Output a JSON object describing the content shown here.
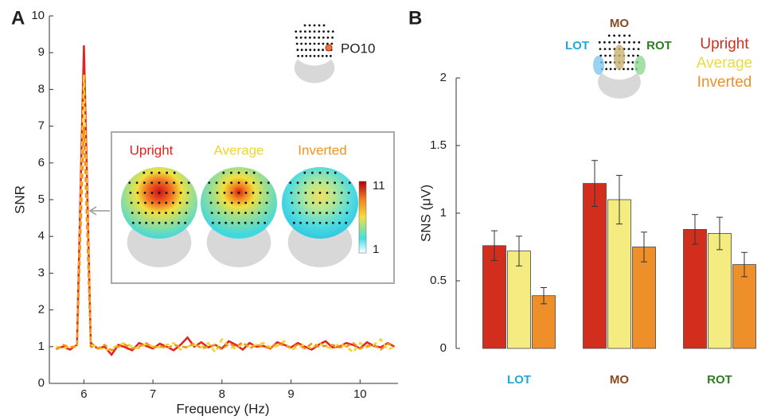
{
  "chart_data": [
    {
      "type": "line",
      "panel": "A",
      "ylabel": "SNR",
      "xlabel": "Frequency (Hz)",
      "electrode": "PO10",
      "xlim": [
        5.5,
        10.55
      ],
      "xticks": [
        6,
        7,
        8,
        9,
        10
      ],
      "ylim": [
        0,
        10
      ],
      "yticks": [
        0,
        1,
        2,
        3,
        4,
        5,
        6,
        7,
        8,
        9,
        10
      ],
      "colorbar_labels": [
        11,
        1
      ],
      "x": [
        5.6,
        5.7,
        5.8,
        5.9,
        6.0,
        6.1,
        6.2,
        6.3,
        6.4,
        6.5,
        6.6,
        6.7,
        6.8,
        6.9,
        7.0,
        7.1,
        7.2,
        7.3,
        7.4,
        7.5,
        7.6,
        7.7,
        7.8,
        7.9,
        8.0,
        8.1,
        8.2,
        8.3,
        8.4,
        8.5,
        8.6,
        8.7,
        8.8,
        8.9,
        9.0,
        9.1,
        9.2,
        9.3,
        9.4,
        9.5,
        9.6,
        9.7,
        9.8,
        9.9,
        10.0,
        10.1,
        10.2,
        10.3,
        10.4,
        10.5
      ],
      "series": [
        {
          "name": "Upright",
          "color": "#e8201a",
          "style": "solid",
          "values": [
            0.95,
            1.0,
            0.92,
            1.05,
            9.2,
            1.1,
            0.95,
            1.0,
            0.78,
            1.05,
            0.98,
            0.9,
            1.1,
            1.02,
            0.95,
            1.08,
            1.0,
            0.9,
            1.05,
            1.25,
            1.0,
            1.12,
            0.98,
            1.05,
            0.95,
            1.15,
            1.05,
            0.92,
            1.1,
            1.0,
            1.02,
            0.95,
            1.12,
            1.05,
            0.98,
            1.1,
            1.0,
            0.92,
            1.05,
            1.15,
            0.98,
            1.0,
            1.1,
            1.05,
            0.95,
            1.12,
            1.02,
            0.98,
            1.1,
            1.0
          ]
        },
        {
          "name": "Average",
          "color": "#ecd82a",
          "style": "dashed",
          "values": [
            1.0,
            0.95,
            1.02,
            0.98,
            8.4,
            1.05,
            1.0,
            0.9,
            0.95,
            1.05,
            1.1,
            1.0,
            0.95,
            1.08,
            1.0,
            0.98,
            1.05,
            1.1,
            0.92,
            1.0,
            1.05,
            0.98,
            1.1,
            0.85,
            1.2,
            1.0,
            0.95,
            1.08,
            1.0,
            1.05,
            1.1,
            0.98,
            1.02,
            1.15,
            0.9,
            1.0,
            1.05,
            0.95,
            1.1,
            1.0,
            0.95,
            1.08,
            1.0,
            0.85,
            1.1,
            0.98,
            1.05,
            1.2,
            0.92,
            1.0
          ]
        },
        {
          "name": "Inverted",
          "color": "#f5921e",
          "style": "dashed",
          "values": [
            0.92,
            1.05,
            0.98,
            1.0,
            7.0,
            1.0,
            0.95,
            1.05,
            0.9,
            1.0,
            1.05,
            0.95,
            1.0,
            1.1,
            0.98,
            1.02,
            0.95,
            1.05,
            1.0,
            0.98,
            1.1,
            0.95,
            1.0,
            1.05,
            0.92,
            1.08,
            1.0,
            1.12,
            0.95,
            1.05,
            1.0,
            0.95,
            1.1,
            1.02,
            0.98,
            1.05,
            0.95,
            1.08,
            1.0,
            1.02,
            1.05,
            0.98,
            1.0,
            1.1,
            0.95,
            1.02,
            1.05,
            0.92,
            1.08,
            1.0
          ]
        }
      ]
    },
    {
      "type": "bar",
      "panel": "B",
      "ylabel": "SNS (μV)",
      "ylim": [
        0,
        2
      ],
      "yticks": [
        0,
        0.5,
        1,
        1.5,
        2
      ],
      "categories": [
        "LOT",
        "MO",
        "ROT"
      ],
      "category_colors": [
        "#1fa8d8",
        "#8b4a1e",
        "#2e7d22"
      ],
      "series": [
        {
          "name": "Upright",
          "color": "#d32d1e",
          "values": [
            0.76,
            1.22,
            0.88
          ],
          "errors": [
            0.11,
            0.17,
            0.11
          ]
        },
        {
          "name": "Average",
          "color": "#f4ec80",
          "values": [
            0.72,
            1.1,
            0.85
          ],
          "errors": [
            0.11,
            0.18,
            0.12
          ]
        },
        {
          "name": "Inverted",
          "color": "#ef8f2a",
          "values": [
            0.39,
            0.75,
            0.62
          ],
          "errors": [
            0.06,
            0.11,
            0.09
          ]
        }
      ]
    }
  ]
}
